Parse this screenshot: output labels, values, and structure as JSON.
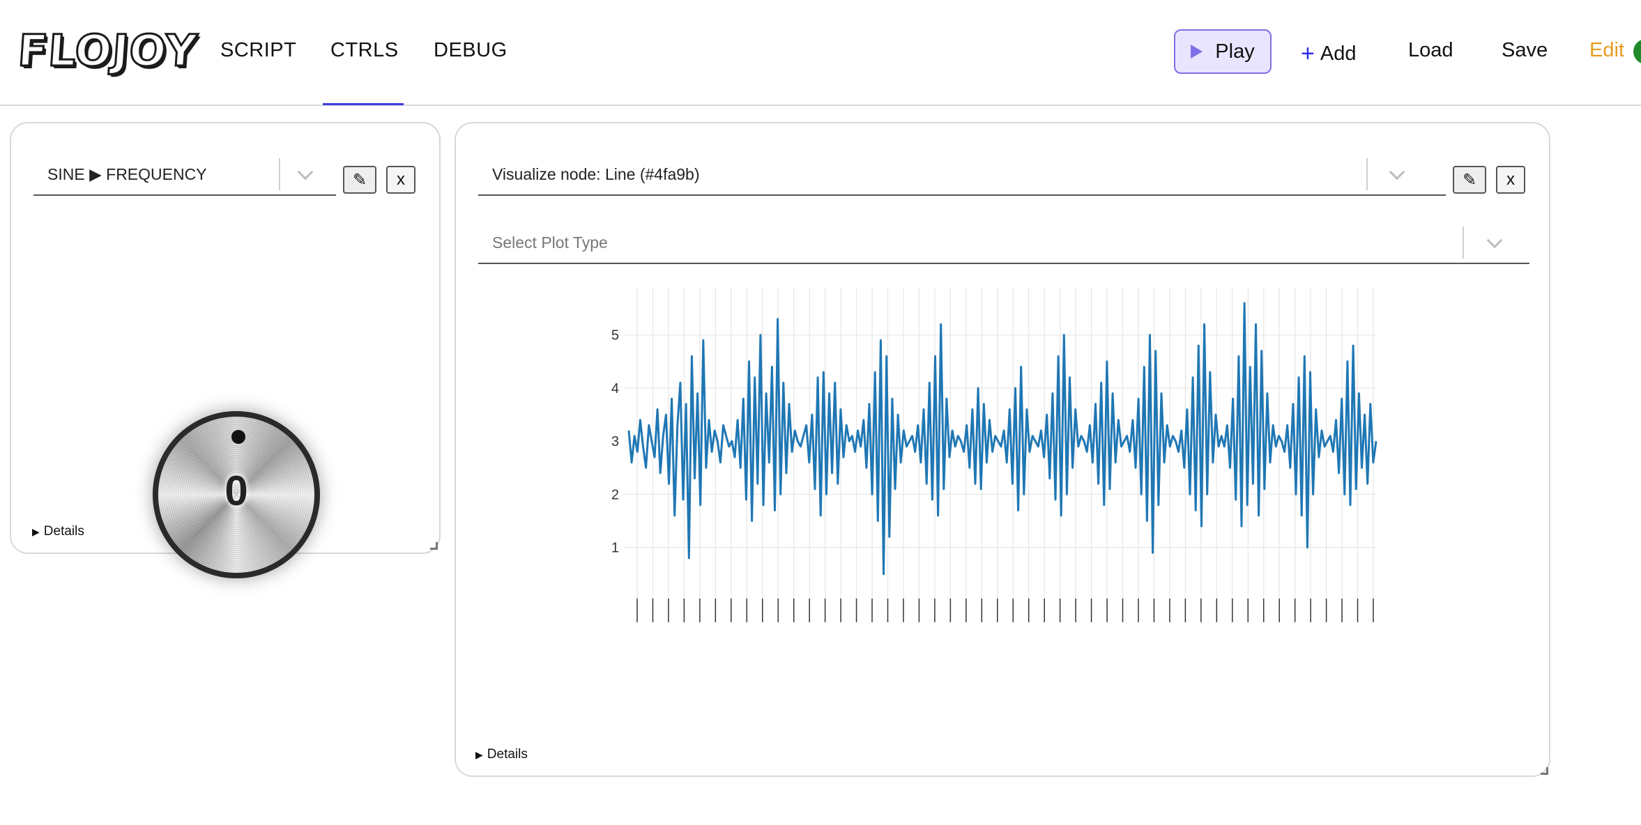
{
  "app": {
    "logo": "FLOJOY",
    "tabs": [
      {
        "label": "SCRIPT"
      },
      {
        "label": "CTRLS",
        "active": true
      },
      {
        "label": "DEBUG"
      }
    ],
    "actions": {
      "play": "Play",
      "add": "Add",
      "load": "Load",
      "save": "Save",
      "edit": "Edit"
    },
    "colors": {
      "accent": "#7e6fe6",
      "tab_underline": "#3b3be0",
      "edit": "#e59b1c",
      "status": "#1f8a2a",
      "series": "#1f77b4"
    }
  },
  "knob_panel": {
    "selected": "SINE ▶ FREQUENCY",
    "edit_icon": "pencil-icon",
    "close_label": "x",
    "knob_value": "0",
    "details_label": "Details"
  },
  "viz_panel": {
    "node_select": "Visualize node: Line (#4fa9b)",
    "plot_type_placeholder": "Select Plot Type",
    "edit_icon": "pencil-icon",
    "close_label": "x",
    "details_label": "Details"
  },
  "chart_data": {
    "type": "line",
    "title": "",
    "xlabel": "",
    "ylabel": "",
    "ylim": [
      0.3,
      5.6
    ],
    "yticks": [
      1,
      2,
      3,
      4,
      5
    ],
    "grid": true,
    "legend": "none",
    "series": [
      {
        "values": [
          3.2,
          2.6,
          3.1,
          2.8,
          3.4,
          2.9,
          2.5,
          3.3,
          3.0,
          2.7,
          3.6,
          2.4,
          3.1,
          3.5,
          2.2,
          3.8,
          1.6,
          3.3,
          4.1,
          1.9,
          3.7,
          0.8,
          4.6,
          2.3,
          3.9,
          1.8,
          4.9,
          2.5,
          3.4,
          2.8,
          3.2,
          3.0,
          2.6,
          3.3,
          3.1,
          2.9,
          3.0,
          2.7,
          3.4,
          2.5,
          3.8,
          1.9,
          4.5,
          1.5,
          4.2,
          2.2,
          5.0,
          1.8,
          3.9,
          2.6,
          4.4,
          1.7,
          5.3,
          2.0,
          4.1,
          2.4,
          3.7,
          2.8,
          3.2,
          3.0,
          2.9,
          3.1,
          3.3,
          2.6,
          3.5,
          2.1,
          4.2,
          1.6,
          4.3,
          2.0,
          3.9,
          2.4,
          4.1,
          2.2,
          3.6,
          2.7,
          3.3,
          3.0,
          3.1,
          2.8,
          3.2,
          2.9,
          3.4,
          2.5,
          3.7,
          2.0,
          4.3,
          1.5,
          4.9,
          0.5,
          4.6,
          1.2,
          3.8,
          2.1,
          3.5,
          2.6,
          3.2,
          2.9,
          3.0,
          3.1,
          2.8,
          3.3,
          2.6,
          3.6,
          2.2,
          4.1,
          1.9,
          4.6,
          1.6,
          5.2,
          2.1,
          3.8,
          2.7,
          3.2,
          2.9,
          3.1,
          3.0,
          2.8,
          3.3,
          2.5,
          3.6,
          2.2,
          4.0,
          2.1,
          3.7,
          2.6,
          3.4,
          2.8,
          3.1,
          3.0,
          2.9,
          3.2,
          2.6,
          3.6,
          2.2,
          4.0,
          1.7,
          4.4,
          2.0,
          3.6,
          2.8,
          3.1,
          3.0,
          2.9,
          3.2,
          2.7,
          3.5,
          2.3,
          3.9,
          1.9,
          4.6,
          1.6,
          5.0,
          2.0,
          4.2,
          2.5,
          3.6,
          2.9,
          3.1,
          3.0,
          2.8,
          3.3,
          2.6,
          3.7,
          2.2,
          4.1,
          1.8,
          4.5,
          2.1,
          3.9,
          2.6,
          3.4,
          2.9,
          3.0,
          3.1,
          2.8,
          3.4,
          2.5,
          3.8,
          2.0,
          4.4,
          1.5,
          5.0,
          0.9,
          4.7,
          1.8,
          3.9,
          2.6,
          3.3,
          2.9,
          3.1,
          3.0,
          2.8,
          3.2,
          2.5,
          3.6,
          2.0,
          4.2,
          1.7,
          4.8,
          1.4,
          5.2,
          2.0,
          4.3,
          2.6,
          3.5,
          2.9,
          3.1,
          2.9,
          3.3,
          2.5,
          3.8,
          1.9,
          4.6,
          1.4,
          5.6,
          1.8,
          4.4,
          2.2,
          5.2,
          1.6,
          4.7,
          2.1,
          3.9,
          2.6,
          3.3,
          2.9,
          3.1,
          3.0,
          2.8,
          3.3,
          2.5,
          3.7,
          2.0,
          4.2,
          1.6,
          4.6,
          1.0,
          4.3,
          2.0,
          3.6,
          2.7,
          3.2,
          2.9,
          3.0,
          3.1,
          2.8,
          3.4,
          2.4,
          3.8,
          2.0,
          4.5,
          1.8,
          4.8,
          2.1,
          3.9,
          2.5,
          3.5,
          2.2,
          3.7,
          2.6,
          3.0
        ]
      }
    ]
  }
}
